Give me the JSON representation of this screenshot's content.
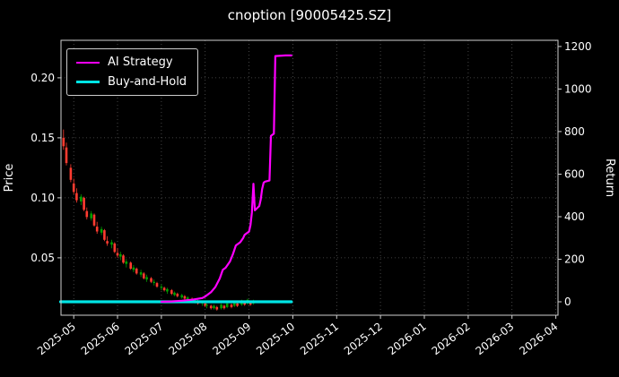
{
  "chart_data": {
    "type": "candlestick+line",
    "title": "cnoption [90005425.SZ]",
    "left_axis": {
      "label": "Price",
      "ticks": [
        0.05,
        0.1,
        0.15,
        0.2
      ],
      "lim": [
        0.0022,
        0.2313
      ]
    },
    "right_axis": {
      "label": "Return",
      "ticks": [
        0,
        200,
        400,
        600,
        800,
        1000,
        1200
      ],
      "lim": [
        -63,
        1229
      ]
    },
    "x_axis": {
      "tick_labels": [
        "2025-05",
        "2025-06",
        "2025-07",
        "2025-08",
        "2025-09",
        "2025-10",
        "2025-11",
        "2025-12",
        "2026-01",
        "2026-02",
        "2026-03",
        "2026-04"
      ],
      "lim_months": [
        -0.29,
        11.05
      ]
    },
    "colors": {
      "up": "#00a000",
      "down": "#ff3b30",
      "ai": "#ff00ff",
      "bh": "#00e5e5",
      "grid": "#555555",
      "text": "#ffffff",
      "bg": "#000000"
    },
    "candles": [
      [
        "2025-04-24",
        0.15,
        0.157,
        0.14,
        0.143
      ],
      [
        "2025-04-26",
        0.142,
        0.146,
        0.127,
        0.129
      ],
      [
        "2025-04-29",
        0.125,
        0.128,
        0.113,
        0.115
      ],
      [
        "2025-05-01",
        0.112,
        0.116,
        0.103,
        0.105
      ],
      [
        "2025-05-03",
        0.104,
        0.108,
        0.096,
        0.098
      ],
      [
        "2025-05-06",
        0.097,
        0.103,
        0.094,
        0.101
      ],
      [
        "2025-05-08",
        0.1,
        0.101,
        0.089,
        0.09
      ],
      [
        "2025-05-10",
        0.089,
        0.092,
        0.082,
        0.084
      ],
      [
        "2025-05-13",
        0.083,
        0.089,
        0.081,
        0.087
      ],
      [
        "2025-05-15",
        0.086,
        0.087,
        0.076,
        0.077
      ],
      [
        "2025-05-17",
        0.076,
        0.08,
        0.07,
        0.072
      ],
      [
        "2025-05-20",
        0.071,
        0.076,
        0.069,
        0.074
      ],
      [
        "2025-05-22",
        0.073,
        0.074,
        0.064,
        0.065
      ],
      [
        "2025-05-24",
        0.064,
        0.068,
        0.06,
        0.062
      ],
      [
        "2025-05-27",
        0.061,
        0.065,
        0.058,
        0.063
      ],
      [
        "2025-05-29",
        0.062,
        0.063,
        0.054,
        0.055
      ],
      [
        "2025-05-31",
        0.054,
        0.058,
        0.05,
        0.052
      ],
      [
        "2025-06-03",
        0.051,
        0.055,
        0.048,
        0.053
      ],
      [
        "2025-06-05",
        0.052,
        0.053,
        0.045,
        0.046
      ],
      [
        "2025-06-07",
        0.045,
        0.049,
        0.042,
        0.047
      ],
      [
        "2025-06-10",
        0.046,
        0.047,
        0.04,
        0.041
      ],
      [
        "2025-06-12",
        0.04,
        0.044,
        0.038,
        0.042
      ],
      [
        "2025-06-14",
        0.041,
        0.042,
        0.036,
        0.037
      ],
      [
        "2025-06-17",
        0.036,
        0.04,
        0.034,
        0.038
      ],
      [
        "2025-06-19",
        0.037,
        0.038,
        0.032,
        0.033
      ],
      [
        "2025-06-21",
        0.032,
        0.036,
        0.03,
        0.034
      ],
      [
        "2025-06-24",
        0.033,
        0.034,
        0.029,
        0.03
      ],
      [
        "2025-06-26",
        0.029,
        0.032,
        0.027,
        0.03
      ],
      [
        "2025-06-28",
        0.029,
        0.03,
        0.025,
        0.026
      ],
      [
        "2025-07-01",
        0.025,
        0.028,
        0.023,
        0.026
      ],
      [
        "2025-07-03",
        0.025,
        0.026,
        0.022,
        0.023
      ],
      [
        "2025-07-05",
        0.022,
        0.025,
        0.02,
        0.024
      ],
      [
        "2025-07-08",
        0.023,
        0.024,
        0.019,
        0.02
      ],
      [
        "2025-07-10",
        0.019,
        0.022,
        0.018,
        0.021
      ],
      [
        "2025-07-12",
        0.02,
        0.021,
        0.017,
        0.018
      ],
      [
        "2025-07-15",
        0.017,
        0.02,
        0.016,
        0.019
      ],
      [
        "2025-07-17",
        0.018,
        0.019,
        0.015,
        0.016
      ],
      [
        "2025-07-19",
        0.015,
        0.018,
        0.014,
        0.017
      ],
      [
        "2025-07-22",
        0.016,
        0.017,
        0.013,
        0.014
      ],
      [
        "2025-07-24",
        0.013,
        0.016,
        0.012,
        0.015
      ],
      [
        "2025-07-26",
        0.014,
        0.015,
        0.011,
        0.012
      ],
      [
        "2025-07-29",
        0.012,
        0.014,
        0.01,
        0.013
      ],
      [
        "2025-07-31",
        0.012,
        0.013,
        0.009,
        0.01
      ],
      [
        "2025-08-02",
        0.01,
        0.012,
        0.008,
        0.011
      ],
      [
        "2025-08-05",
        0.01,
        0.011,
        0.007,
        0.008
      ],
      [
        "2025-08-07",
        0.008,
        0.011,
        0.007,
        0.01
      ],
      [
        "2025-08-09",
        0.009,
        0.01,
        0.006,
        0.007
      ],
      [
        "2025-08-12",
        0.008,
        0.012,
        0.007,
        0.011
      ],
      [
        "2025-08-14",
        0.01,
        0.011,
        0.007,
        0.008
      ],
      [
        "2025-08-16",
        0.009,
        0.013,
        0.008,
        0.012
      ],
      [
        "2025-08-19",
        0.011,
        0.012,
        0.008,
        0.009
      ],
      [
        "2025-08-21",
        0.01,
        0.014,
        0.009,
        0.013
      ],
      [
        "2025-08-23",
        0.012,
        0.013,
        0.009,
        0.01
      ],
      [
        "2025-08-26",
        0.011,
        0.015,
        0.01,
        0.014
      ],
      [
        "2025-08-28",
        0.013,
        0.014,
        0.01,
        0.011
      ],
      [
        "2025-08-30",
        0.012,
        0.016,
        0.011,
        0.015
      ],
      [
        "2025-09-02",
        0.013,
        0.014,
        0.01,
        0.011
      ],
      [
        "2025-09-04",
        0.012,
        0.015,
        0.011,
        0.014
      ]
    ],
    "series": [
      {
        "name": "AI Strategy",
        "axis": "return",
        "color": "#ff00ff",
        "points": [
          [
            "2025-07-01",
            0
          ],
          [
            "2025-07-08",
            2
          ],
          [
            "2025-07-15",
            5
          ],
          [
            "2025-07-22",
            10
          ],
          [
            "2025-07-29",
            18
          ],
          [
            "2025-08-01",
            25
          ],
          [
            "2025-08-05",
            45
          ],
          [
            "2025-08-08",
            70
          ],
          [
            "2025-08-11",
            110
          ],
          [
            "2025-08-13",
            150
          ],
          [
            "2025-08-15",
            160
          ],
          [
            "2025-08-18",
            190
          ],
          [
            "2025-08-20",
            225
          ],
          [
            "2025-08-22",
            265
          ],
          [
            "2025-08-25",
            280
          ],
          [
            "2025-08-27",
            300
          ],
          [
            "2025-08-28",
            315
          ],
          [
            "2025-08-29",
            320
          ],
          [
            "2025-09-01",
            330
          ],
          [
            "2025-09-02",
            360
          ],
          [
            "2025-09-03",
            420
          ],
          [
            "2025-09-04",
            555
          ],
          [
            "2025-09-05",
            430
          ],
          [
            "2025-09-08",
            450
          ],
          [
            "2025-09-09",
            480
          ],
          [
            "2025-09-10",
            530
          ],
          [
            "2025-09-11",
            560
          ],
          [
            "2025-09-12",
            565
          ],
          [
            "2025-09-15",
            570
          ],
          [
            "2025-09-16",
            780
          ],
          [
            "2025-09-17",
            785
          ],
          [
            "2025-09-18",
            790
          ],
          [
            "2025-09-19",
            1155
          ],
          [
            "2025-09-26",
            1158
          ],
          [
            "2025-09-30",
            1158
          ]
        ]
      },
      {
        "name": "Buy-and-Hold",
        "axis": "return",
        "color": "#00e5e5",
        "points": [
          [
            "2025-04-22",
            0
          ],
          [
            "2025-09-30",
            0
          ]
        ]
      }
    ],
    "legend_position": "upper-left",
    "grid": true
  }
}
